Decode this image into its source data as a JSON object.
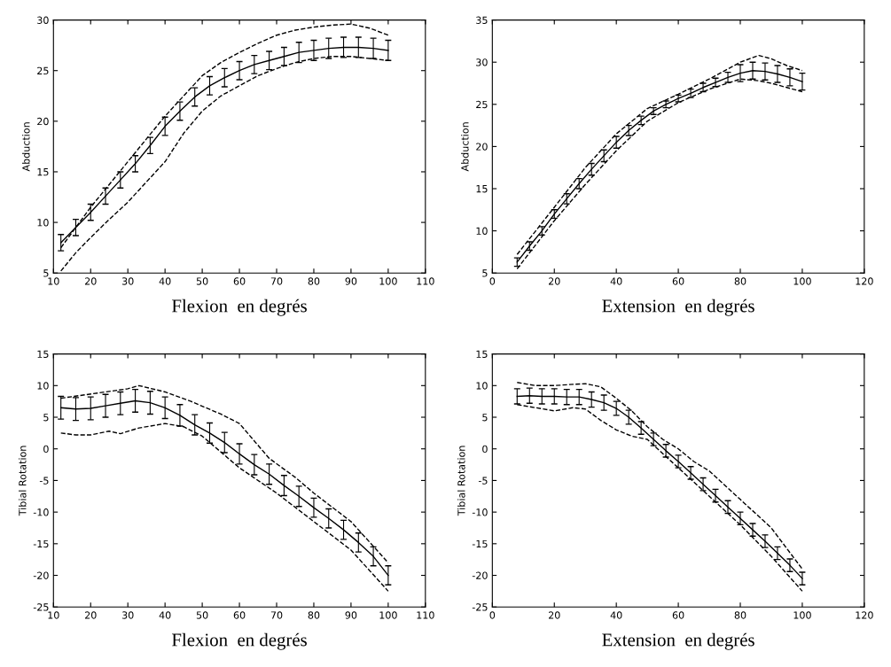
{
  "chart_data": [
    {
      "type": "line",
      "xlabel": "Flexion  en degrés",
      "ylabel": "Abduction",
      "xlim": [
        10,
        110
      ],
      "xticks": [
        10,
        20,
        30,
        40,
        50,
        60,
        70,
        80,
        90,
        100,
        110
      ],
      "ylim": [
        5,
        30
      ],
      "yticks": [
        5,
        10,
        15,
        20,
        25,
        30
      ],
      "grid": false,
      "marker": "none",
      "series": [
        {
          "color": "#000000",
          "line_style": "solid",
          "x": [
            12,
            16,
            20,
            24,
            28,
            32,
            36,
            40,
            44,
            48,
            52,
            56,
            60,
            64,
            68,
            72,
            76,
            80,
            84,
            88,
            92,
            96,
            100
          ],
          "values": [
            8,
            9.5,
            11,
            12.6,
            14.2,
            15.8,
            17.6,
            19.5,
            21,
            22.4,
            23.5,
            24.3,
            25,
            25.6,
            26,
            26.4,
            26.8,
            27,
            27.2,
            27.3,
            27.3,
            27.2,
            27
          ],
          "errors": [
            0.8,
            0.8,
            0.8,
            0.8,
            0.8,
            0.8,
            0.8,
            0.9,
            0.9,
            0.9,
            0.9,
            0.9,
            0.9,
            0.9,
            0.9,
            0.9,
            1,
            1,
            1,
            1,
            1,
            1,
            1
          ]
        },
        {
          "color": "#000000",
          "line_style": "dashed",
          "x": [
            12,
            20,
            30,
            40,
            45,
            50,
            55,
            60,
            65,
            70,
            75,
            80,
            85,
            90,
            95,
            100
          ],
          "values": [
            7.5,
            11.5,
            16,
            20.5,
            22.5,
            24.5,
            25.8,
            26.8,
            27.7,
            28.5,
            29,
            29.3,
            29.5,
            29.6,
            29.2,
            28.5
          ]
        },
        {
          "color": "#000000",
          "line_style": "dashed",
          "x": [
            12,
            16,
            20,
            25,
            30,
            35,
            40,
            45,
            50,
            55,
            60,
            65,
            70,
            75,
            80,
            85,
            90,
            95,
            100
          ],
          "values": [
            5.2,
            7,
            8.5,
            10.3,
            12,
            14,
            16,
            18.8,
            21,
            22.5,
            23.5,
            24.5,
            25.2,
            25.8,
            26.2,
            26.4,
            26.4,
            26.2,
            26
          ]
        }
      ]
    },
    {
      "type": "line",
      "xlabel": "Extension  en degrés",
      "ylabel": "Abduction",
      "xlim": [
        0,
        120
      ],
      "xticks": [
        0,
        20,
        40,
        60,
        80,
        100,
        120
      ],
      "ylim": [
        5,
        35
      ],
      "yticks": [
        5,
        10,
        15,
        20,
        25,
        30,
        35
      ],
      "grid": false,
      "marker": "none",
      "series": [
        {
          "color": "#000000",
          "line_style": "solid",
          "x": [
            8,
            12,
            16,
            20,
            24,
            28,
            32,
            36,
            40,
            44,
            48,
            52,
            56,
            60,
            64,
            68,
            72,
            76,
            80,
            84,
            88,
            92,
            96,
            100
          ],
          "values": [
            6.3,
            8.2,
            10,
            12,
            13.8,
            15.6,
            17.3,
            18.9,
            20.5,
            21.9,
            23.1,
            24.2,
            25,
            25.7,
            26.3,
            27,
            27.6,
            28.2,
            28.7,
            29,
            28.9,
            28.6,
            28.2,
            27.7
          ],
          "errors": [
            0.5,
            0.5,
            0.5,
            0.5,
            0.6,
            0.6,
            0.7,
            0.7,
            0.7,
            0.6,
            0.5,
            0.4,
            0.4,
            0.4,
            0.5,
            0.5,
            0.5,
            0.6,
            1,
            1,
            1,
            1,
            1,
            1
          ]
        },
        {
          "color": "#000000",
          "line_style": "dashed",
          "x": [
            8,
            20,
            30,
            40,
            50,
            60,
            70,
            80,
            86,
            90,
            95,
            100
          ],
          "values": [
            7.2,
            12.8,
            17.5,
            21.5,
            24.5,
            26.2,
            28,
            30,
            30.8,
            30.4,
            29.6,
            29
          ]
        },
        {
          "color": "#000000",
          "line_style": "dashed",
          "x": [
            8,
            20,
            30,
            40,
            50,
            60,
            70,
            80,
            86,
            90,
            95,
            100
          ],
          "values": [
            5.5,
            11.2,
            15.5,
            19.5,
            23,
            25.2,
            26.8,
            28,
            27.8,
            27.5,
            27,
            26.5
          ]
        }
      ]
    },
    {
      "type": "line",
      "xlabel": "Flexion  en degrés",
      "ylabel": "Tibial Rotation",
      "xlim": [
        10,
        110
      ],
      "xticks": [
        10,
        20,
        30,
        40,
        50,
        60,
        70,
        80,
        90,
        100,
        110
      ],
      "ylim": [
        -25,
        15
      ],
      "yticks": [
        -25,
        -20,
        -15,
        -10,
        -5,
        0,
        5,
        10,
        15
      ],
      "grid": false,
      "marker": "none",
      "series": [
        {
          "color": "#000000",
          "line_style": "solid",
          "x": [
            12,
            16,
            20,
            24,
            28,
            32,
            36,
            40,
            44,
            48,
            52,
            56,
            60,
            64,
            68,
            72,
            76,
            80,
            84,
            88,
            92,
            96,
            100
          ],
          "values": [
            6.5,
            6.3,
            6.4,
            6.8,
            7.2,
            7.6,
            7.3,
            6.5,
            5.3,
            3.8,
            2.5,
            1,
            -0.8,
            -2.5,
            -4,
            -5.8,
            -7.5,
            -9.3,
            -11,
            -12.8,
            -14.8,
            -17,
            -20
          ],
          "errors": [
            1.8,
            1.8,
            1.8,
            1.8,
            1.8,
            1.8,
            1.8,
            1.7,
            1.7,
            1.6,
            1.6,
            1.6,
            1.6,
            1.6,
            1.6,
            1.6,
            1.6,
            1.5,
            1.5,
            1.5,
            1.5,
            1.5,
            1.5
          ]
        },
        {
          "color": "#000000",
          "line_style": "dashed",
          "x": [
            12,
            18,
            24,
            30,
            33,
            40,
            47,
            55,
            60,
            68,
            75,
            80,
            90,
            100
          ],
          "values": [
            8,
            8.5,
            9,
            9.5,
            10,
            9,
            7.5,
            5.5,
            4,
            -1.5,
            -4.5,
            -7,
            -11.5,
            -18
          ]
        },
        {
          "color": "#000000",
          "line_style": "dashed",
          "x": [
            12,
            16,
            20,
            25,
            28,
            33,
            40,
            45,
            50,
            60,
            70,
            80,
            90,
            100
          ],
          "values": [
            2.5,
            2.2,
            2.2,
            2.8,
            2.4,
            3.3,
            4,
            3.5,
            2,
            -3,
            -7,
            -11.5,
            -16,
            -22.5
          ]
        }
      ]
    },
    {
      "type": "line",
      "xlabel": "Extension  en degrés",
      "ylabel": "Tibial Rotation",
      "xlim": [
        0,
        120
      ],
      "xticks": [
        0,
        20,
        40,
        60,
        80,
        100,
        120
      ],
      "ylim": [
        -25,
        15
      ],
      "yticks": [
        -25,
        -20,
        -15,
        -10,
        -5,
        0,
        5,
        10,
        15
      ],
      "grid": false,
      "marker": "none",
      "series": [
        {
          "color": "#000000",
          "line_style": "solid",
          "x": [
            8,
            12,
            16,
            20,
            24,
            28,
            32,
            36,
            40,
            44,
            48,
            52,
            56,
            60,
            64,
            68,
            72,
            76,
            80,
            84,
            88,
            92,
            96,
            100
          ],
          "values": [
            8.3,
            8.4,
            8.3,
            8.3,
            8.2,
            8.2,
            7.8,
            7.3,
            6.4,
            5,
            3.3,
            1.5,
            -0.3,
            -2,
            -3.8,
            -5.6,
            -7.4,
            -9.2,
            -11,
            -12.8,
            -14.6,
            -16.5,
            -18.4,
            -20.5
          ],
          "errors": [
            1.2,
            1.2,
            1.2,
            1.2,
            1.2,
            1.2,
            1.2,
            1.2,
            1.1,
            1.1,
            1,
            1,
            1,
            1,
            1,
            1,
            1,
            1,
            1,
            1,
            1,
            1,
            1,
            1
          ]
        },
        {
          "color": "#000000",
          "line_style": "dashed",
          "x": [
            8,
            14,
            20,
            26,
            30,
            35,
            40,
            45,
            50,
            55,
            60,
            65,
            70,
            80,
            90,
            100
          ],
          "values": [
            10.5,
            10,
            10,
            10.2,
            10.3,
            9.8,
            8,
            6,
            3.5,
            1.5,
            0,
            -2,
            -3.5,
            -8,
            -12.5,
            -19
          ]
        },
        {
          "color": "#000000",
          "line_style": "dashed",
          "x": [
            8,
            14,
            20,
            26,
            30,
            35,
            40,
            45,
            50,
            60,
            70,
            80,
            90,
            100
          ],
          "values": [
            7,
            6.5,
            6,
            6.5,
            6.3,
            4.5,
            3,
            2,
            1.5,
            -3,
            -7.5,
            -12,
            -17,
            -22.5
          ]
        }
      ]
    }
  ]
}
